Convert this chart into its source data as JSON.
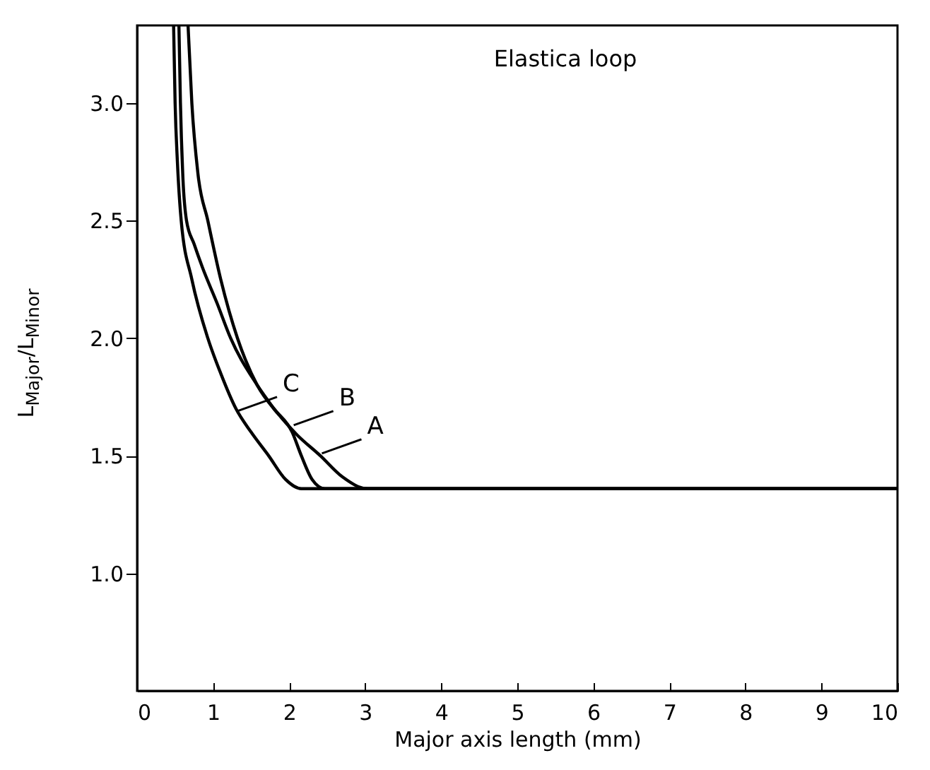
{
  "chart_data": {
    "type": "line",
    "title": "Elastica loop",
    "xlabel": "Major axis length (mm)",
    "ylabel": "L$_{Major}$/L$_{Minor}$",
    "xlim": [
      0,
      10
    ],
    "xticks": [
      0,
      1,
      2,
      3,
      4,
      5,
      6,
      7,
      8,
      9,
      10
    ],
    "ylim": [
      0.5,
      3.33
    ],
    "yticks": [
      {
        "value": 1,
        "label": "1.0"
      },
      {
        "value": 1.5,
        "label": "1.5"
      },
      {
        "value": 2,
        "label": "2.0"
      },
      {
        "value": 2.5,
        "label": "2.5"
      },
      {
        "value": 3,
        "label": "3.0"
      }
    ],
    "grid": false,
    "legend": false,
    "marker": "none",
    "line_style": "solid",
    "series": [
      {
        "color": "#000000",
        "x": [
          0.67,
          0.72,
          0.8,
          0.93,
          1.1,
          1.32,
          1.58,
          1.85,
          2.1,
          2.41,
          2.7,
          3.03,
          10
        ],
        "values": [
          3.33,
          3.0,
          2.7,
          2.5,
          2.25,
          2.0,
          1.8,
          1.68,
          1.59,
          1.5,
          1.41,
          1.36,
          1.36
        ]
      },
      {
        "color": "#000000",
        "x": [
          0.55,
          0.57,
          0.6,
          0.65,
          0.75,
          0.86,
          1.05,
          1.23,
          1.58,
          1.8,
          2.04,
          2.16,
          2.3,
          2.47,
          10
        ],
        "values": [
          3.33,
          3.0,
          2.7,
          2.5,
          2.4,
          2.3,
          2.15,
          2.0,
          1.8,
          1.7,
          1.6,
          1.5,
          1.4,
          1.36,
          1.36
        ]
      },
      {
        "color": "#000000",
        "x": [
          0.48,
          0.5,
          0.53,
          0.58,
          0.72,
          0.93,
          1.1,
          1.3,
          1.5,
          1.73,
          1.95,
          2.16,
          10
        ],
        "values": [
          3.33,
          3.0,
          2.75,
          2.5,
          2.25,
          2.0,
          1.85,
          1.7,
          1.6,
          1.5,
          1.4,
          1.36,
          1.36
        ]
      }
    ],
    "annotations": [
      {
        "text": "C",
        "x": 1.32,
        "y": 1.69
      },
      {
        "text": "B",
        "x": 2.06,
        "y": 1.63
      },
      {
        "text": "A",
        "x": 2.43,
        "y": 1.51
      }
    ]
  }
}
